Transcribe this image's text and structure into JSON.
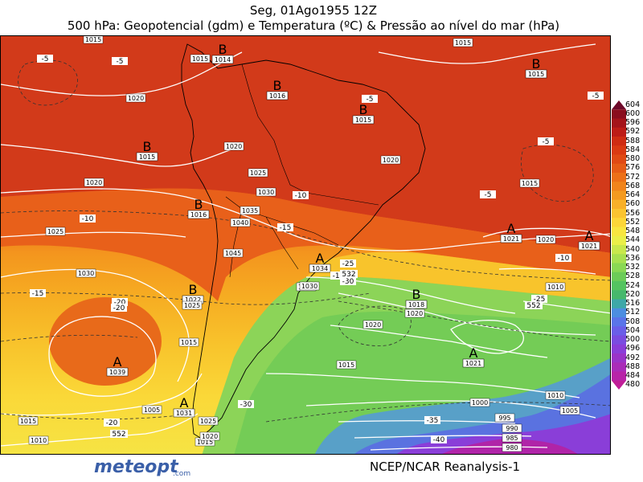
{
  "header": {
    "date_line": "Seg, 01Ago1955 12Z",
    "title_line": "500 hPa: Geopotencial (gdm) e Temperatura (ºC) & Pressão ao nível do mar (hPa)"
  },
  "footer": {
    "logo_text": "meteopt",
    "logo_suffix": ".com",
    "source": "NCEP/NCAR Reanalysis-1"
  },
  "colorbar": {
    "levels": [
      "604",
      "600",
      "596",
      "592",
      "588",
      "584",
      "580",
      "576",
      "572",
      "568",
      "564",
      "560",
      "556",
      "552",
      "548",
      "544",
      "540",
      "536",
      "532",
      "528",
      "524",
      "520",
      "516",
      "512",
      "508",
      "504",
      "500",
      "496",
      "492",
      "488",
      "484",
      "480"
    ],
    "colors": [
      "#6e0a2a",
      "#8a0e1e",
      "#a4141a",
      "#bd1c16",
      "#cf2c12",
      "#da3a12",
      "#e04a14",
      "#e65c16",
      "#ec7018",
      "#f0841c",
      "#f49a20",
      "#f8b028",
      "#fac430",
      "#fcd638",
      "#f8e640",
      "#eaef48",
      "#c8e84c",
      "#a8e050",
      "#8ad854",
      "#6ccc58",
      "#54c460",
      "#46b86c",
      "#3ea8a8",
      "#4c8ee0",
      "#5a74e8",
      "#6a5ee8",
      "#7a4ce0",
      "#8a3ed8",
      "#9a34c8",
      "#aa2cb8",
      "#b824a8",
      "#c01e98"
    ]
  },
  "map": {
    "highs_lows": [
      {
        "letter": "B",
        "pressure": "1014"
      },
      {
        "letter": "B",
        "pressure": "1016"
      },
      {
        "letter": "B",
        "pressure": "1015"
      },
      {
        "letter": "B",
        "pressure": "1015"
      },
      {
        "letter": "B",
        "pressure": "1015"
      },
      {
        "letter": "B",
        "pressure": "1016"
      },
      {
        "letter": "B",
        "pressure": "1022"
      },
      {
        "letter": "A",
        "pressure": "1039"
      },
      {
        "letter": "A",
        "pressure": "1034"
      },
      {
        "letter": "B",
        "pressure": "1018"
      },
      {
        "letter": "A",
        "pressure": "1021"
      },
      {
        "letter": "A",
        "pressure": "1021"
      },
      {
        "letter": "A",
        "pressure": "1021"
      },
      {
        "letter": "A",
        "pressure": "1031"
      }
    ],
    "isobar_labels": [
      "1015",
      "1015",
      "1015",
      "1020",
      "1020",
      "1025",
      "1030",
      "1035",
      "1040",
      "1045",
      "1020",
      "1025",
      "1030",
      "1025",
      "1020",
      "1015",
      "1010",
      "1020",
      "1020",
      "1015",
      "1020",
      "1015",
      "1010",
      "1005",
      "1000",
      "995",
      "990",
      "985",
      "980",
      "1015",
      "1015",
      "1020",
      "1010",
      "1005",
      "1025",
      "1030",
      "1020"
    ],
    "temp_labels": [
      "-5",
      "-5",
      "-5",
      "-5",
      "-5",
      "-10",
      "-15",
      "-15",
      "-20",
      "-25",
      "-30",
      "-10",
      "-10",
      "-25",
      "-30",
      "-35",
      "-40",
      "-20",
      "-20",
      "-5",
      "-15"
    ],
    "height_labels": [
      "532",
      "552",
      "552"
    ]
  }
}
